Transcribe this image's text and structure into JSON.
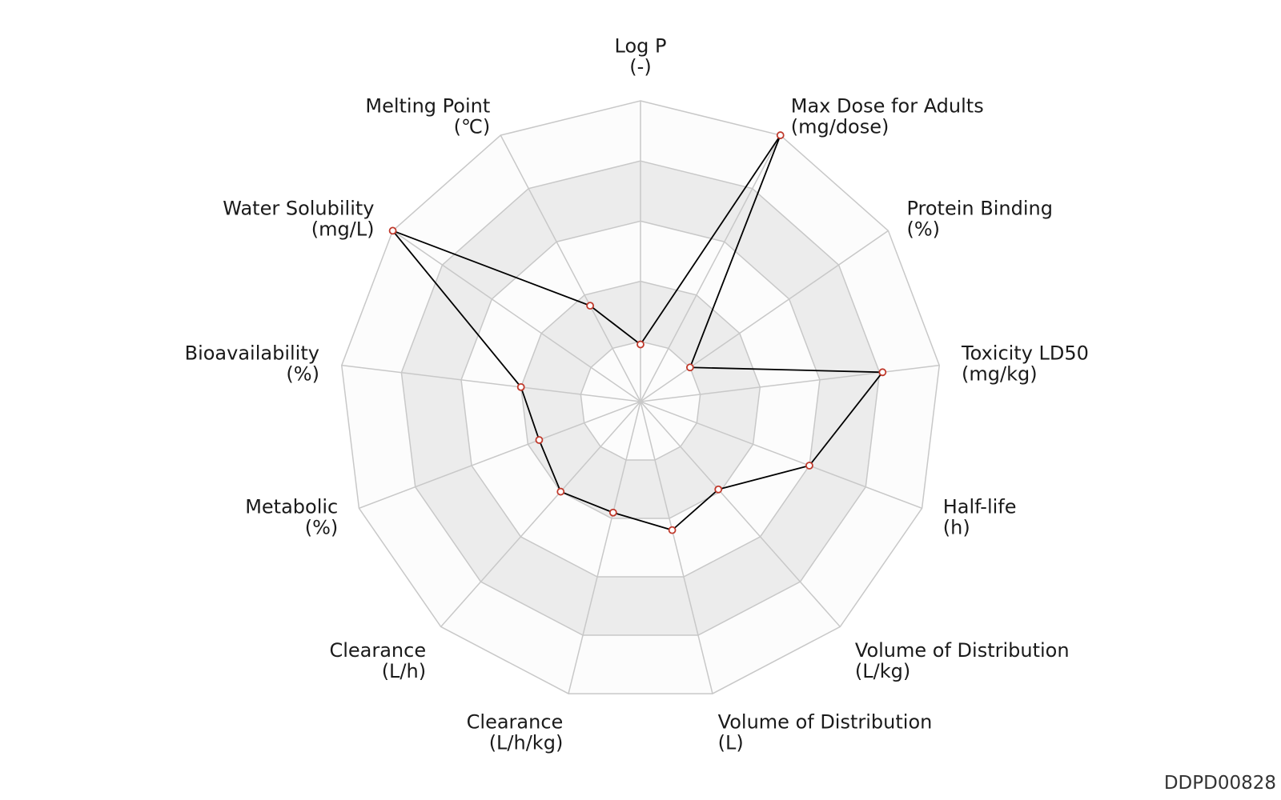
{
  "chart_data": {
    "type": "radar",
    "axes": [
      {
        "name": "Log P",
        "unit": "(-)"
      },
      {
        "name": "Max Dose for Adults",
        "unit": "(mg/dose)"
      },
      {
        "name": "Protein Binding",
        "unit": "(%)"
      },
      {
        "name": "Toxicity LD50",
        "unit": "(mg/kg)"
      },
      {
        "name": "Half-life",
        "unit": "(h)"
      },
      {
        "name": "Volume of Distribution",
        "unit": "(L/kg)"
      },
      {
        "name": "Volume of Distribution",
        "unit": "(L)"
      },
      {
        "name": "Clearance",
        "unit": "(L/h/kg)"
      },
      {
        "name": "Clearance",
        "unit": "(L/h)"
      },
      {
        "name": "Metabolic",
        "unit": "(%)"
      },
      {
        "name": "Bioavailability",
        "unit": "(%)"
      },
      {
        "name": "Water Solubility",
        "unit": "(mg/L)"
      },
      {
        "name": "Melting Point",
        "unit": "(℃)"
      }
    ],
    "series": [
      {
        "values": [
          0.19,
          1.0,
          0.2,
          0.81,
          0.6,
          0.39,
          0.44,
          0.38,
          0.4,
          0.36,
          0.4,
          1.0,
          0.36
        ]
      }
    ],
    "range": [
      0,
      1
    ],
    "rings": 5,
    "grid": true,
    "colors": {
      "line": "#000000",
      "marker": "#c0392b",
      "grid_band": "#ececec",
      "grid_line": "#c8c8c8"
    }
  },
  "watermark": "DDPD00828"
}
